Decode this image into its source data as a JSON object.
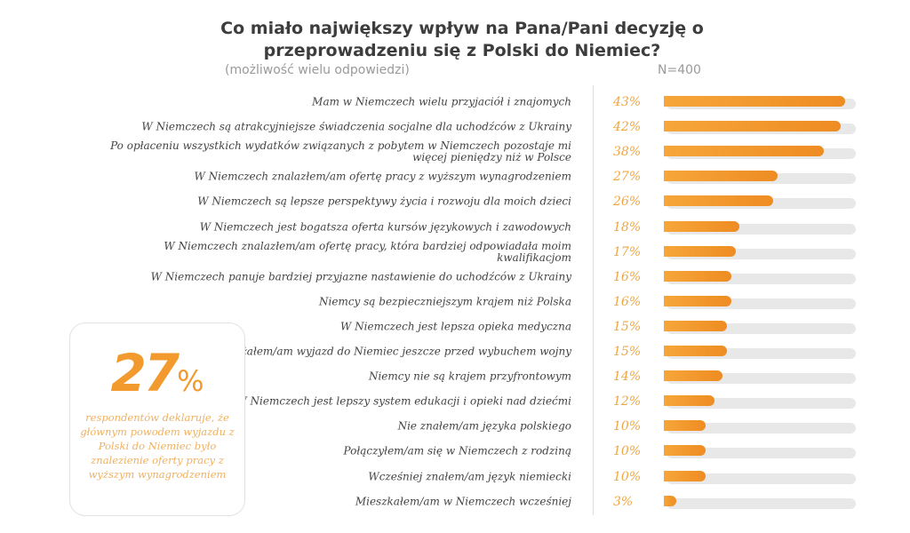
{
  "chart_data": {
    "type": "bar",
    "orientation": "horizontal",
    "title": "Co miało największy wpływ na Pana/Pani decyzję o przeprowadzeniu się z Polski do Niemiec?",
    "subtitle": "(możliwość wielu odpowiedzi)",
    "sample": "N=400",
    "xlim": [
      0,
      45.5
    ],
    "grid": false,
    "bar_color": "#f29a2e",
    "track_color": "#e8e8e8",
    "categories": [
      "Mam w Niemczech wielu przyjaciół i znajomych",
      "W Niemczech są atrakcyjniejsze świadczenia socjalne dla uchodźców z Ukrainy",
      "Po opłaceniu wszystkich wydatków związanych z pobytem w Niemczech pozostaje mi więcej pieniędzy niż w Polsce",
      "W Niemczech znalazłem/am ofertę pracy z wyższym wynagrodzeniem",
      "W Niemczech są lepsze perspektywy życia i rozwoju dla moich dzieci",
      "W Niemczech jest bogatsza oferta kursów językowych i zawodowych",
      "W Niemczech znalazłem/am ofertę pracy, która bardziej odpowiadała moim kwalifikacjom",
      "W Niemczech panuje bardziej przyjazne nastawienie do uchodźców z Ukrainy",
      "Niemcy są bezpieczniejszym krajem niż Polska",
      "W Niemczech jest lepsza opieka medyczna",
      "Rozważałem/am wyjazd do Niemiec jeszcze przed wybuchem wojny",
      "Niemcy nie są krajem przyfrontowym",
      "W Niemczech jest lepszy system edukacji i opieki nad dziećmi",
      "Nie znałem/am języka polskiego",
      "Połączyłem/am się w Niemczech z rodziną",
      "Wcześniej znałem/am język niemiecki",
      "Mieszkałem/am w Niemczech wcześniej"
    ],
    "values": [
      43,
      42,
      38,
      27,
      26,
      18,
      17,
      16,
      16,
      15,
      15,
      14,
      12,
      10,
      10,
      10,
      3
    ],
    "labels": [
      "43%",
      "42%",
      "38%",
      "27%",
      "26%",
      "18%",
      "17%",
      "16%",
      "16%",
      "15%",
      "15%",
      "14%",
      "12%",
      "10%",
      "10%",
      "10%",
      "3%"
    ]
  },
  "callout": {
    "value": "27",
    "unit": "%",
    "text": "respondentów deklaruje, że głównym powodem wyjazdu z Polski do Niemiec było znalezienie oferty pracy z wyższym wynagrodzeniem"
  }
}
